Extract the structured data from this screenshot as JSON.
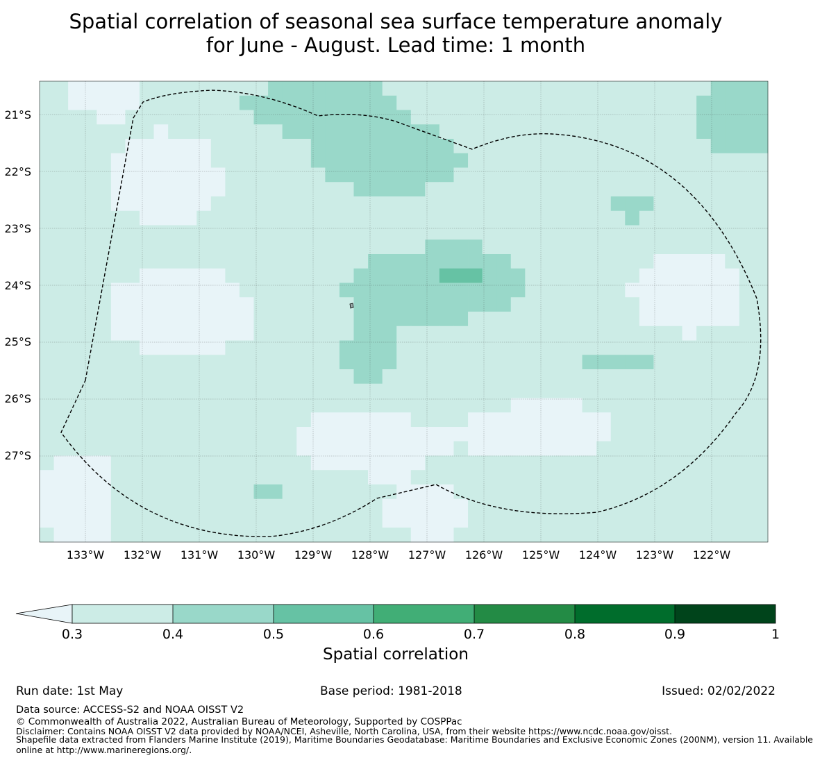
{
  "title": {
    "line1": "Spatial correlation of seasonal sea surface temperature anomaly",
    "line2": "for June - August. Lead time: 1 month"
  },
  "map": {
    "lat_labels": [
      "21°S",
      "22°S",
      "23°S",
      "24°S",
      "25°S",
      "26°S",
      "27°S"
    ],
    "lon_labels": [
      "133°W",
      "132°W",
      "131°W",
      "130°W",
      "129°W",
      "128°W",
      "127°W",
      "126°W",
      "125°W",
      "124°W",
      "123°W",
      "122°W"
    ]
  },
  "colors": {
    "lt03": "#e8f4f8",
    "c0304": "#ccece6",
    "c0405": "#99d8c9",
    "c0506": "#66c2a4",
    "c0607": "#41ae76",
    "c0708": "#238b45",
    "c0809": "#006d2c",
    "c0910": "#00441b",
    "boundary": "#000000"
  },
  "colorbar": {
    "tick_labels": [
      "0.3",
      "0.4",
      "0.5",
      "0.6",
      "0.7",
      "0.8",
      "0.9",
      "1"
    ],
    "label": "Spatial correlation"
  },
  "footer": {
    "run_date": "Run date: 1st May",
    "base_period": "Base period: 1981-2018",
    "issued": "Issued: 02/02/2022",
    "data_source": "Data source: ACCESS-S2 and NOAA OISST V2",
    "copyright": "© Commonwealth of Australia 2022, Australian Bureau of Meteorology, Supported by COSPPac",
    "disclaimer": "Disclaimer: Contains NOAA OISST V2 data provided by NOAA/NCEI, Asheville, North Carolina, USA, from their website https://www.ncdc.noaa.gov/oisst.",
    "shapefile1": "Shapefile data extracted from Flanders Marine Institute (2019), Maritime Boundaries Geodatabase: Maritime Boundaries and Exclusive Economic Zones (200NM), version 11. Available",
    "shapefile2": "online at http://www.marineregions.org/."
  }
}
